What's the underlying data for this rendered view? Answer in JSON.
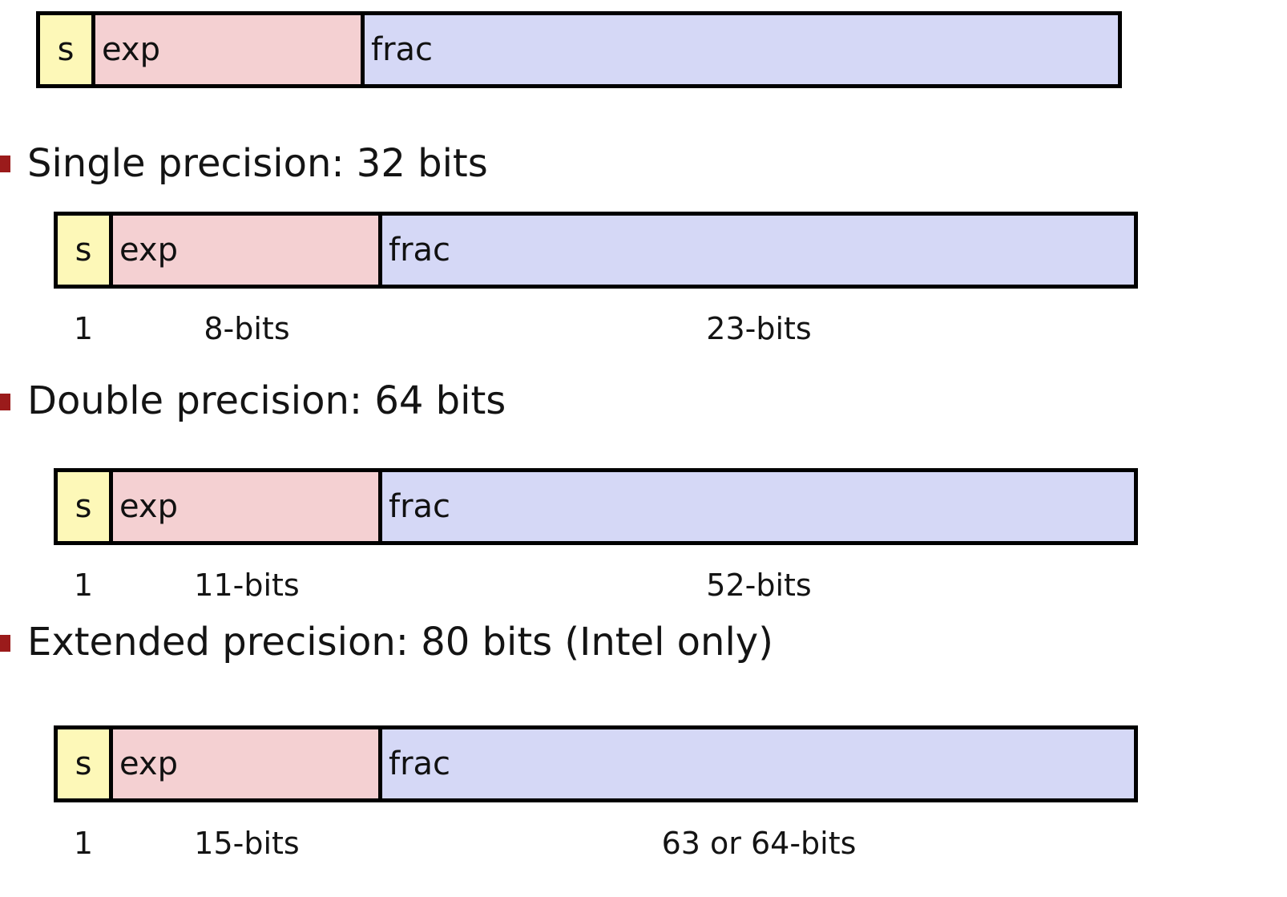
{
  "fields": {
    "sign": "s",
    "exponent": "exp",
    "fraction": "frac"
  },
  "formats": [
    {
      "heading": "Single precision: 32 bits",
      "sign_width": "1",
      "exp_width": "8-bits",
      "frac_width": "23-bits"
    },
    {
      "heading": "Double precision: 64 bits",
      "sign_width": "1",
      "exp_width": "11-bits",
      "frac_width": "52-bits"
    },
    {
      "heading": "Extended precision: 80 bits (Intel only)",
      "sign_width": "1",
      "exp_width": "15-bits",
      "frac_width": "63 or 64-bits"
    }
  ],
  "colors": {
    "sign": "#fdf8b8",
    "exponent": "#f4d0d2",
    "fraction": "#d5d8f6",
    "bullet": "#9b1b1b"
  }
}
